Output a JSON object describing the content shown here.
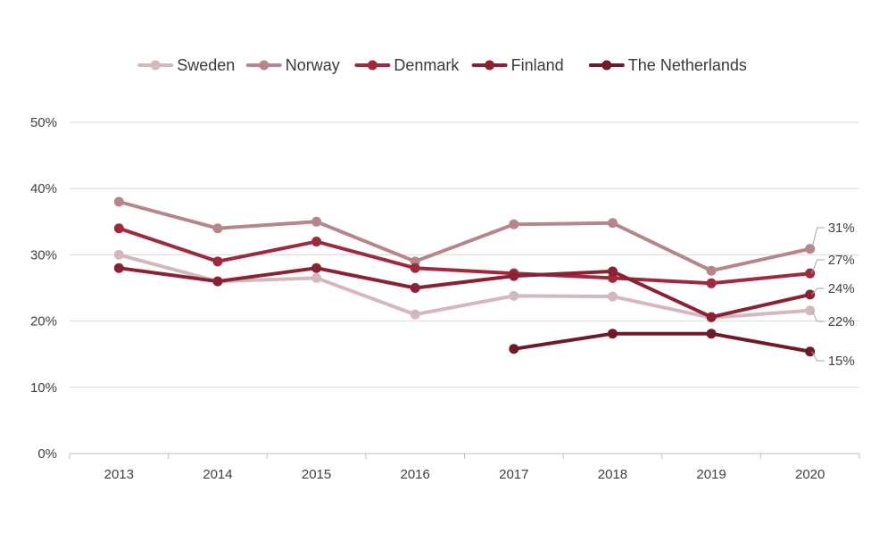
{
  "chart_data": {
    "type": "line",
    "x": [
      "2013",
      "2014",
      "2015",
      "2016",
      "2017",
      "2018",
      "2019",
      "2020"
    ],
    "y_ticks": [
      "0%",
      "10%",
      "20%",
      "30%",
      "40%",
      "50%"
    ],
    "ylim": [
      0,
      50
    ],
    "grid": true,
    "legend_position": "top",
    "series": [
      {
        "name": "Sweden",
        "color": "#d4b9bc",
        "values": [
          30,
          26,
          26.5,
          21,
          23.8,
          23.7,
          20.5,
          21.6
        ],
        "end_label": "22%"
      },
      {
        "name": "Norway",
        "color": "#b5868c",
        "values": [
          38,
          34,
          35,
          29,
          34.6,
          34.8,
          27.6,
          30.9
        ],
        "end_label": "31%"
      },
      {
        "name": "Denmark",
        "color": "#9e2a3e",
        "values": [
          34,
          29,
          32,
          28,
          27.2,
          26.5,
          25.7,
          27.2
        ],
        "end_label": "27%"
      },
      {
        "name": "Finland",
        "color": "#8a2234",
        "values": [
          28,
          26,
          28,
          25,
          26.8,
          27.5,
          20.6,
          24.0
        ],
        "end_label": "24%"
      },
      {
        "name": "The Netherlands",
        "color": "#6e1a28",
        "values": [
          null,
          null,
          null,
          null,
          15.8,
          18.1,
          18.1,
          15.4
        ],
        "end_label": "15%"
      }
    ]
  }
}
